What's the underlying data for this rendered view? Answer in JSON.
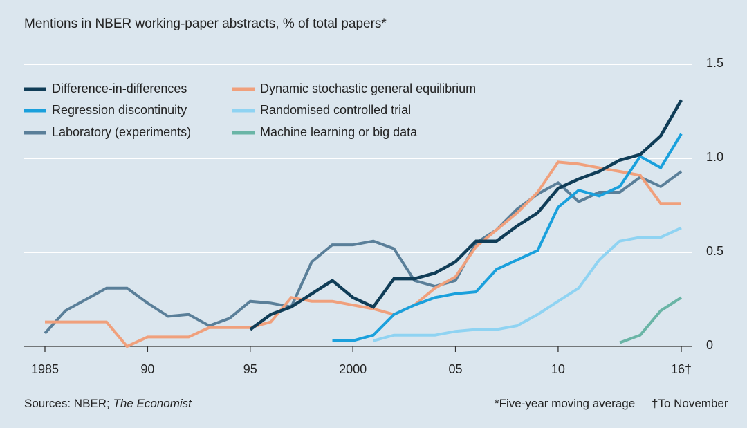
{
  "chart_data": {
    "type": "line",
    "title": "Mentions in NBER working-paper abstracts, % of total papers*",
    "xlabel": "",
    "ylabel": "",
    "ylim": [
      0,
      1.5
    ],
    "xlim": [
      1985,
      2016
    ],
    "grid": true,
    "legend_position": "top-left",
    "x_ticks": [
      {
        "value": 1985,
        "label": "1985"
      },
      {
        "value": 1990,
        "label": "90"
      },
      {
        "value": 1995,
        "label": "95"
      },
      {
        "value": 2000,
        "label": "2000"
      },
      {
        "value": 2005,
        "label": "05"
      },
      {
        "value": 2010,
        "label": "10"
      },
      {
        "value": 2016,
        "label": "16†"
      }
    ],
    "y_ticks": [
      {
        "value": 0,
        "label": "0"
      },
      {
        "value": 0.5,
        "label": "0.5"
      },
      {
        "value": 1.0,
        "label": "1.0"
      },
      {
        "value": 1.5,
        "label": "1.5"
      }
    ],
    "series": [
      {
        "name": "Laboratory (experiments)",
        "color": "#5a7f99",
        "x": [
          1985,
          1986,
          1987,
          1988,
          1989,
          1990,
          1991,
          1992,
          1993,
          1994,
          1995,
          1996,
          1997,
          1998,
          1999,
          2000,
          2001,
          2002,
          2003,
          2004,
          2005,
          2006,
          2007,
          2008,
          2009,
          2010,
          2011,
          2012,
          2013,
          2014,
          2015,
          2016
        ],
        "y": [
          0.07,
          0.19,
          0.25,
          0.31,
          0.31,
          0.23,
          0.16,
          0.17,
          0.11,
          0.15,
          0.24,
          0.23,
          0.21,
          0.45,
          0.54,
          0.54,
          0.56,
          0.52,
          0.35,
          0.32,
          0.35,
          0.55,
          0.62,
          0.73,
          0.81,
          0.87,
          0.77,
          0.82,
          0.82,
          0.9,
          0.85,
          0.93
        ]
      },
      {
        "name": "Dynamic stochastic general equilibrium",
        "color": "#f0a07c",
        "x": [
          1985,
          1986,
          1987,
          1988,
          1989,
          1990,
          1991,
          1992,
          1993,
          1994,
          1995,
          1996,
          1997,
          1998,
          1999,
          2000,
          2001,
          2002,
          2003,
          2004,
          2005,
          2006,
          2007,
          2008,
          2009,
          2010,
          2011,
          2012,
          2013,
          2014,
          2015,
          2016
        ],
        "y": [
          0.13,
          0.13,
          0.13,
          0.13,
          0.0,
          0.05,
          0.05,
          0.05,
          0.1,
          0.1,
          0.1,
          0.13,
          0.26,
          0.24,
          0.24,
          0.22,
          0.2,
          0.17,
          0.22,
          0.31,
          0.37,
          0.53,
          0.62,
          0.71,
          0.82,
          0.98,
          0.97,
          0.95,
          0.93,
          0.91,
          0.76,
          0.76
        ]
      },
      {
        "name": "Randomised controlled trial",
        "color": "#8fd3f2",
        "x": [
          2001,
          2002,
          2003,
          2004,
          2005,
          2006,
          2007,
          2008,
          2009,
          2010,
          2011,
          2012,
          2013,
          2014,
          2015,
          2016
        ],
        "y": [
          0.03,
          0.06,
          0.06,
          0.06,
          0.08,
          0.09,
          0.09,
          0.11,
          0.17,
          0.24,
          0.31,
          0.46,
          0.56,
          0.58,
          0.58,
          0.63
        ]
      },
      {
        "name": "Regression discontinuity",
        "color": "#1aa0dc",
        "x": [
          1999,
          2000,
          2001,
          2002,
          2003,
          2004,
          2005,
          2006,
          2007,
          2008,
          2009,
          2010,
          2011,
          2012,
          2013,
          2014,
          2015,
          2016
        ],
        "y": [
          0.03,
          0.03,
          0.06,
          0.17,
          0.22,
          0.26,
          0.28,
          0.29,
          0.41,
          0.46,
          0.51,
          0.74,
          0.83,
          0.8,
          0.85,
          1.01,
          0.95,
          1.13
        ]
      },
      {
        "name": "Machine learning or big data",
        "color": "#6ab5a6",
        "x": [
          2013,
          2014,
          2015,
          2016
        ],
        "y": [
          0.02,
          0.06,
          0.19,
          0.26
        ]
      },
      {
        "name": "Difference-in-differences",
        "color": "#103d57",
        "x": [
          1995,
          1996,
          1997,
          1998,
          1999,
          2000,
          2001,
          2002,
          2003,
          2004,
          2005,
          2006,
          2007,
          2008,
          2009,
          2010,
          2011,
          2012,
          2013,
          2014,
          2015,
          2016
        ],
        "y": [
          0.09,
          0.17,
          0.21,
          0.28,
          0.35,
          0.26,
          0.21,
          0.36,
          0.36,
          0.39,
          0.45,
          0.56,
          0.56,
          0.64,
          0.71,
          0.84,
          0.89,
          0.93,
          0.99,
          1.02,
          1.12,
          1.31
        ]
      }
    ],
    "legend": [
      {
        "name": "Difference-in-differences",
        "color": "#103d57"
      },
      {
        "name": "Regression discontinuity",
        "color": "#1aa0dc"
      },
      {
        "name": "Laboratory (experiments)",
        "color": "#5a7f99"
      },
      {
        "name": "Dynamic stochastic general equilibrium",
        "color": "#f0a07c"
      },
      {
        "name": "Randomised controlled trial",
        "color": "#8fd3f2"
      },
      {
        "name": "Machine learning or big data",
        "color": "#6ab5a6"
      }
    ],
    "sources": "Sources: NBER; The Economist",
    "footnote_moving_average": "*Five-year moving average",
    "footnote_to_november": "†To November"
  }
}
